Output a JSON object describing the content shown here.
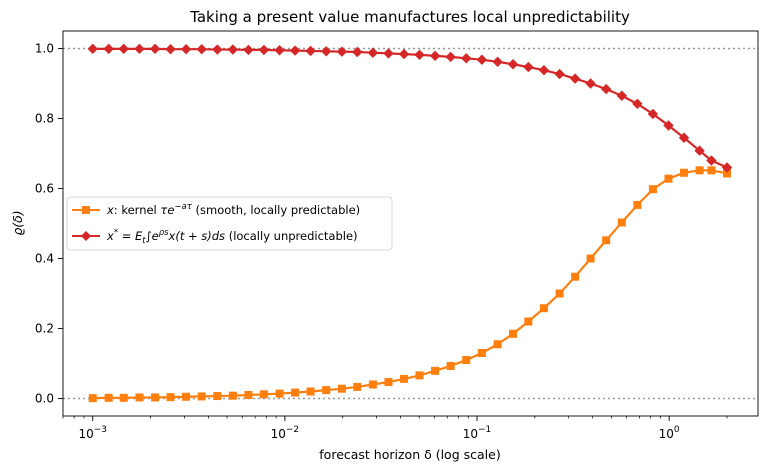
{
  "chart_data": {
    "type": "line",
    "title": "Taking a present value manufactures local unpredictability",
    "xlabel": "forecast horizon δ  (log scale)",
    "ylabel": "ϱ(δ)",
    "xscale": "log",
    "xlim": [
      0.0007,
      2.9
    ],
    "ylim": [
      -0.05,
      1.05
    ],
    "x_ticks": [
      {
        "value": 0.001,
        "base": "10",
        "exp": "−3"
      },
      {
        "value": 0.01,
        "base": "10",
        "exp": "−2"
      },
      {
        "value": 0.1,
        "base": "10",
        "exp": "−1"
      },
      {
        "value": 1,
        "base": "10",
        "exp": "0"
      }
    ],
    "y_ticks": [
      "0.0",
      "0.2",
      "0.4",
      "0.6",
      "0.8",
      "1.0"
    ],
    "reference_lines": [
      0.0,
      1.0
    ],
    "grid": false,
    "legend_position": "center-left",
    "x": [
      0.001,
      0.00121,
      0.00145,
      0.00175,
      0.00211,
      0.00254,
      0.00306,
      0.00369,
      0.00445,
      0.00536,
      0.00646,
      0.00778,
      0.00938,
      0.0113,
      0.0136,
      0.0164,
      0.0198,
      0.0238,
      0.0287,
      0.0346,
      0.0417,
      0.0502,
      0.0605,
      0.0729,
      0.0879,
      0.106,
      0.128,
      0.154,
      0.185,
      0.223,
      0.269,
      0.324,
      0.39,
      0.47,
      0.567,
      0.683,
      0.823,
      0.992,
      1.195,
      1.44,
      1.66,
      2.0
    ],
    "series": [
      {
        "name": "x: kernel τe^{−aτ}  (smooth, locally predictable)",
        "legend": {
          "var": "x",
          "pre": ": kernel ",
          "math": "τe",
          "sup": "−aτ",
          "post": "  (smooth, locally predictable)"
        },
        "color": "#ff7f0e",
        "marker": "square",
        "values": [
          0.001,
          0.002,
          0.002,
          0.003,
          0.003,
          0.004,
          0.005,
          0.006,
          0.007,
          0.008,
          0.01,
          0.012,
          0.014,
          0.017,
          0.02,
          0.024,
          0.028,
          0.033,
          0.04,
          0.047,
          0.056,
          0.066,
          0.079,
          0.093,
          0.11,
          0.13,
          0.155,
          0.185,
          0.22,
          0.258,
          0.3,
          0.348,
          0.4,
          0.452,
          0.503,
          0.553,
          0.598,
          0.628,
          0.645,
          0.652,
          0.652,
          0.643
        ]
      },
      {
        "name": "x* = Et∫e^{ρs}x(t+s)ds  (locally unpredictable)",
        "legend": {
          "var": "x",
          "varsup": "*",
          "eq": " = E",
          "sub": "t",
          "int": "∫e",
          "sup": "ρs",
          "math": "x(t + s)ds",
          "post": "  (locally unpredictable)"
        },
        "color": "#d62728",
        "marker": "diamond",
        "values": [
          0.999,
          0.999,
          0.999,
          0.999,
          0.999,
          0.998,
          0.998,
          0.998,
          0.997,
          0.997,
          0.996,
          0.996,
          0.995,
          0.994,
          0.993,
          0.992,
          0.991,
          0.99,
          0.988,
          0.986,
          0.984,
          0.982,
          0.979,
          0.976,
          0.972,
          0.968,
          0.962,
          0.955,
          0.947,
          0.938,
          0.927,
          0.914,
          0.9,
          0.884,
          0.865,
          0.842,
          0.813,
          0.78,
          0.745,
          0.708,
          0.68,
          0.66
        ]
      }
    ]
  }
}
